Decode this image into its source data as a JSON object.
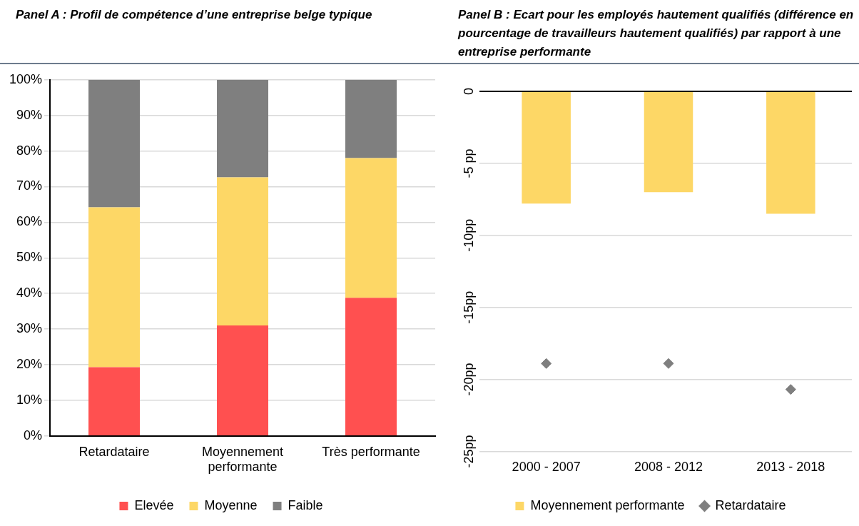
{
  "chart_data": [
    {
      "type": "bar",
      "title": "Panel A : Profil de compétence d’une entreprise belge typique",
      "categories": [
        "Retardataire",
        "Moyennement performante",
        "Très performante"
      ],
      "stacked": true,
      "series": [
        {
          "name": "Elevée",
          "color": "#ff5050",
          "values": [
            19.3,
            31,
            38.8
          ]
        },
        {
          "name": "Moyenne",
          "color": "#fdd766",
          "values": [
            44.9,
            41.6,
            39.2
          ]
        },
        {
          "name": "Faible",
          "color": "#7f7f7f",
          "values": [
            35.8,
            27.4,
            22
          ]
        }
      ],
      "ylim": [
        0,
        100
      ],
      "yticks": [
        {
          "value": 0,
          "label": "0%"
        },
        {
          "value": 10,
          "label": "10%"
        },
        {
          "value": 20,
          "label": "20%"
        },
        {
          "value": 30,
          "label": "30%"
        },
        {
          "value": 40,
          "label": "40%"
        },
        {
          "value": 50,
          "label": "50%"
        },
        {
          "value": 60,
          "label": "60%"
        },
        {
          "value": 70,
          "label": "70%"
        },
        {
          "value": 80,
          "label": "80%"
        },
        {
          "value": 90,
          "label": "90%"
        },
        {
          "value": 100,
          "label": "100%"
        }
      ],
      "grid": "y",
      "legend": "bottom"
    },
    {
      "type": "bar",
      "title": "Panel B : Ecart pour les employés hautement qualifiés (différence en pourcentage de travailleurs hautement qualifiés) par rapport à une entreprise performante",
      "categories": [
        "2000 - 2007",
        "2008 - 2012",
        "2013 - 2018"
      ],
      "series": [
        {
          "name": "Moyennement performante",
          "color": "#fdd766",
          "values": [
            -7.8,
            -7.0,
            -8.5
          ]
        },
        {
          "name": "Retardataire",
          "type": "scatter",
          "color": "#7f7f7f",
          "marker": "diamond",
          "x": [
            "2000 - 2007",
            "2008 - 2012",
            "2013 - 2018"
          ],
          "values": [
            -18.9,
            -18.9,
            -20.7
          ]
        }
      ],
      "ylim": [
        -25,
        0
      ],
      "yticks": [
        {
          "value": -25,
          "label": "-25pp"
        },
        {
          "value": -20,
          "label": "-20pp"
        },
        {
          "value": -15,
          "label": "-15pp"
        },
        {
          "value": -10,
          "label": "-10pp"
        },
        {
          "value": -5,
          "label": "-5 pp"
        },
        0
      ],
      "grid": "y",
      "legend": "bottom"
    }
  ]
}
